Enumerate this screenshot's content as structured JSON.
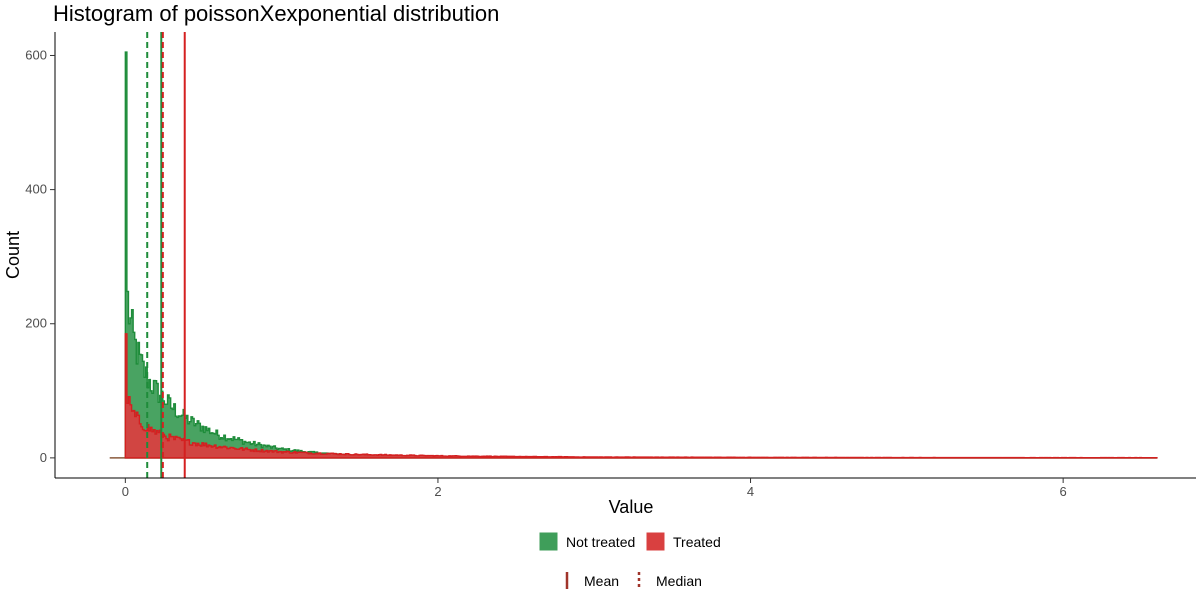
{
  "chart_data": {
    "type": "histogram",
    "title": "Histogram of poissonXexponential distribution",
    "xlabel": "Value",
    "ylabel": "Count",
    "xlim": [
      -0.45,
      6.85
    ],
    "ylim": [
      -30,
      635
    ],
    "x_ticks": [
      0,
      2,
      4,
      6
    ],
    "y_ticks": [
      0,
      200,
      400,
      600
    ],
    "x_tick_labels": [
      "0",
      "2",
      "4",
      "6"
    ],
    "y_tick_labels": [
      "0",
      "200",
      "400",
      "600"
    ],
    "grid": false,
    "legend_position": "bottom",
    "histogram_range": [
      -0.1,
      6.6
    ],
    "bin_width": 0.01,
    "series": [
      {
        "name": "Not treated",
        "color": "#1e8c3a",
        "fill": "#3f9e5a",
        "peak_at_zero": 605,
        "profile_x": [
          0.01,
          0.03,
          0.06,
          0.1,
          0.15,
          0.2,
          0.25,
          0.3,
          0.4,
          0.5,
          0.6,
          0.8,
          1.0,
          1.2,
          1.4,
          1.6,
          1.8,
          2.0,
          2.5,
          3.0,
          6.6
        ],
        "profile_y": [
          245,
          205,
          170,
          140,
          115,
          100,
          88,
          75,
          57,
          45,
          34,
          22,
          13,
          8,
          5,
          3,
          2,
          1.5,
          0.5,
          0.2,
          0
        ]
      },
      {
        "name": "Treated",
        "color": "#d42020",
        "fill": "#d94040",
        "peak_at_zero": 185,
        "profile_x": [
          0.01,
          0.03,
          0.06,
          0.1,
          0.15,
          0.2,
          0.25,
          0.3,
          0.4,
          0.5,
          0.6,
          0.8,
          1.0,
          1.2,
          1.5,
          2.0,
          2.5,
          3.0,
          4.0,
          5.0,
          6.6
        ],
        "profile_y": [
          95,
          75,
          62,
          52,
          44,
          38,
          33,
          29,
          24,
          20,
          17,
          12,
          9,
          7,
          5,
          3,
          2,
          1.3,
          0.8,
          0.5,
          0.3
        ]
      }
    ],
    "vlines": [
      {
        "series": "Not treated",
        "stat": "Mean",
        "x": 0.23,
        "color": "#1e8c3a",
        "linetype": "solid"
      },
      {
        "series": "Not treated",
        "stat": "Median",
        "x": 0.14,
        "color": "#1e8c3a",
        "linetype": "dashed"
      },
      {
        "series": "Treated",
        "stat": "Mean",
        "x": 0.38,
        "color": "#d42020",
        "linetype": "solid"
      },
      {
        "series": "Treated",
        "stat": "Median",
        "x": 0.24,
        "color": "#d42020",
        "linetype": "dashed"
      }
    ],
    "legend_fill": [
      {
        "label": "Not treated",
        "color": "#3f9e5a"
      },
      {
        "label": "Treated",
        "color": "#d94040"
      }
    ],
    "legend_lines": [
      {
        "label": "Mean",
        "linetype": "solid",
        "color": "#a0342a"
      },
      {
        "label": "Median",
        "linetype": "dashed",
        "color": "#a0342a"
      }
    ]
  }
}
